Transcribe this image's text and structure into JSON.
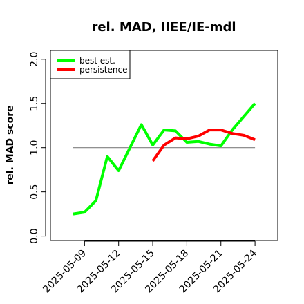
{
  "chart_data": {
    "type": "line",
    "title": "rel. MAD, IIEE/IE-mdl",
    "xlabel": "",
    "ylabel": "rel. MAD score",
    "x_ticks": [
      "2025-05-09",
      "2025-05-12",
      "2025-05-15",
      "2025-05-18",
      "2025-05-21",
      "2025-05-24"
    ],
    "y_ticks": [
      "0.0",
      "0.5",
      "1.0",
      "1.5",
      "2.0"
    ],
    "xlim": [
      "2025-05-06",
      "2025-05-26"
    ],
    "ylim": [
      -0.05,
      2.1
    ],
    "reference_line": {
      "y": 1.0,
      "x_start": "2025-05-08",
      "x_end": "2025-05-24",
      "color": "#808080"
    },
    "legend": {
      "position": "top-left",
      "entries": [
        "best est.",
        "persistence"
      ]
    },
    "series": [
      {
        "name": "best est.",
        "color": "#00ff00",
        "x": [
          "2025-05-08",
          "2025-05-09",
          "2025-05-10",
          "2025-05-11",
          "2025-05-12",
          "2025-05-13",
          "2025-05-14",
          "2025-05-15",
          "2025-05-16",
          "2025-05-17",
          "2025-05-18",
          "2025-05-19",
          "2025-05-20",
          "2025-05-21",
          "2025-05-22",
          "2025-05-23",
          "2025-05-24"
        ],
        "values": [
          0.25,
          0.27,
          0.4,
          0.9,
          0.74,
          1.0,
          1.26,
          1.03,
          1.2,
          1.19,
          1.06,
          1.07,
          1.04,
          1.02,
          1.2,
          1.35,
          1.5
        ]
      },
      {
        "name": "persistence",
        "color": "#ff0000",
        "x": [
          "2025-05-15",
          "2025-05-16",
          "2025-05-17",
          "2025-05-18",
          "2025-05-19",
          "2025-05-20",
          "2025-05-21",
          "2025-05-22",
          "2025-05-23",
          "2025-05-24"
        ],
        "values": [
          0.85,
          1.03,
          1.11,
          1.1,
          1.13,
          1.2,
          1.2,
          1.16,
          1.14,
          1.09
        ]
      }
    ]
  }
}
